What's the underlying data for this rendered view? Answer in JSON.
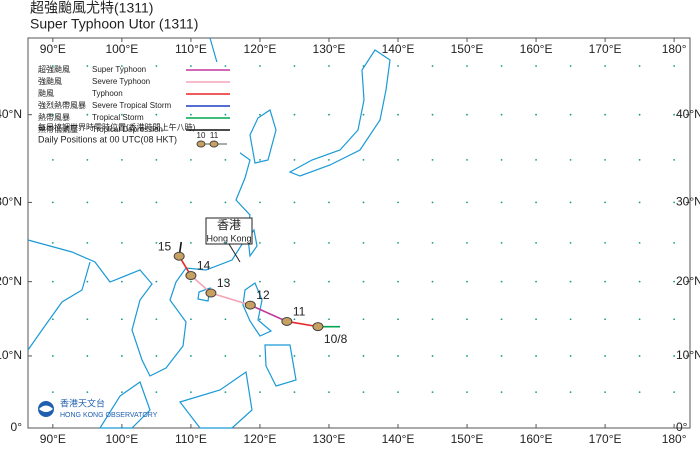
{
  "title_zh": "超強颱風尤特(1311)",
  "title_en": "Super Typhoon Utor (1311)",
  "map": {
    "xlim": [
      86.4,
      182.3
    ],
    "ylim": [
      0,
      47.7
    ],
    "grid_dots_step": 5,
    "coast_color": "#1a9ad6",
    "xticks": [
      {
        "value": 90,
        "label": "90°E"
      },
      {
        "value": 100,
        "label": "100°E"
      },
      {
        "value": 110,
        "label": "110°E"
      },
      {
        "value": 120,
        "label": "120°E"
      },
      {
        "value": 130,
        "label": "130°E"
      },
      {
        "value": 140,
        "label": "140°E"
      },
      {
        "value": 150,
        "label": "150°E"
      },
      {
        "value": 160,
        "label": "160°E"
      },
      {
        "value": 170,
        "label": "170°E"
      },
      {
        "value": 180,
        "label": "180°"
      }
    ],
    "yticks": [
      {
        "value": 0,
        "label": "0°"
      },
      {
        "value": 10,
        "label": "10°N"
      },
      {
        "value": 20,
        "label": "20°N"
      },
      {
        "value": 30,
        "label": "30°N"
      },
      {
        "value": 40,
        "label": "40°N"
      }
    ]
  },
  "legend": [
    {
      "zh": "超強颱風",
      "en": "Super Typhoon",
      "color": "#c0399e"
    },
    {
      "zh": "強颱風",
      "en": "Severe Typhoon",
      "color": "#f4a6b8"
    },
    {
      "zh": "颱風",
      "en": "Typhoon",
      "color": "#e8262a"
    },
    {
      "zh": "強烈熱帶風暴",
      "en": "Severe Tropical Storm",
      "color": "#1f3fbf"
    },
    {
      "zh": "熱帶風暴",
      "en": "Tropical Storm",
      "color": "#00a651"
    },
    {
      "zh": "熱帶低氣壓",
      "en": "Tropical Depression",
      "color": "#111111"
    }
  ],
  "daily_note_zh": "每日協調世界時零時位置(香港時間上午八時)",
  "daily_note_en": "Daily Positions at 00 UTC(08 HKT)",
  "daily_sample": [
    "10",
    "11"
  ],
  "hong_kong": {
    "zh": "香港",
    "en": "Hong Kong"
  },
  "logo": {
    "zh": "香港天文台",
    "en": "HONG KONG OBSERVATORY"
  },
  "track": [
    {
      "lon": 131.6,
      "lat": 14.0,
      "label": null,
      "color": "#00a651"
    },
    {
      "lon": 128.4,
      "lat": 14.0,
      "label": "10/8",
      "color": "#e8262a"
    },
    {
      "lon": 123.9,
      "lat": 14.7,
      "label": "11",
      "color": "#c0399e"
    },
    {
      "lon": 118.6,
      "lat": 16.9,
      "label": "12",
      "color": "#f4a6b8"
    },
    {
      "lon": 112.9,
      "lat": 18.5,
      "label": "13",
      "color": "#f4a6b8"
    },
    {
      "lon": 110.0,
      "lat": 20.8,
      "label": "14",
      "color": "#e8262a"
    },
    {
      "lon": 108.3,
      "lat": 23.3,
      "label": "15",
      "color": "#111111"
    },
    {
      "lon": 108.6,
      "lat": 25.1,
      "label": null
    }
  ]
}
